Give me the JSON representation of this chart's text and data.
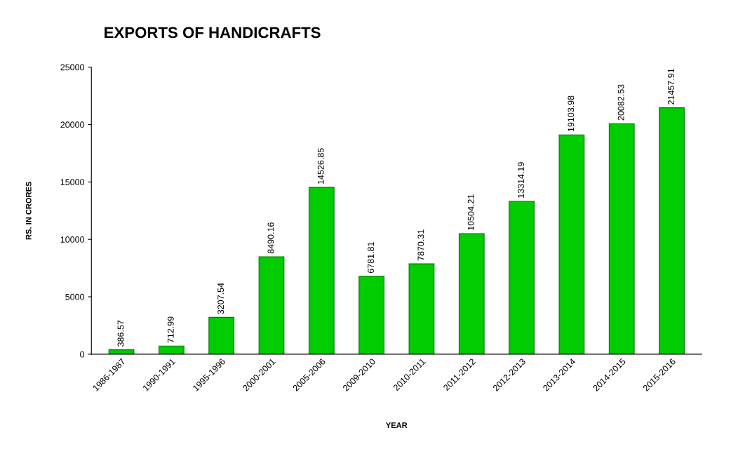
{
  "chart_data": {
    "type": "bar",
    "title": "EXPORTS OF HANDICRAFTS",
    "xlabel": "YEAR",
    "ylabel": "RS. IN CRORES",
    "categories": [
      "1986-1987",
      "1990-1991",
      "1995-1996",
      "2000-2001",
      "2005-2006",
      "2009-2010",
      "2010-2011",
      "2011-2012",
      "2012-2013",
      "2013-2014",
      "2014-2015",
      "2015-2016"
    ],
    "values": [
      386.57,
      712.99,
      3207.54,
      8490.16,
      14526.85,
      6781.81,
      7870.31,
      10504.21,
      13314.19,
      19103.98,
      20082.53,
      21457.91
    ],
    "color": "#00cc00",
    "ylim": [
      0,
      25000
    ],
    "yticks": [
      0,
      5000,
      10000,
      15000,
      20000,
      25000
    ],
    "grid": false,
    "data_labels": true
  }
}
